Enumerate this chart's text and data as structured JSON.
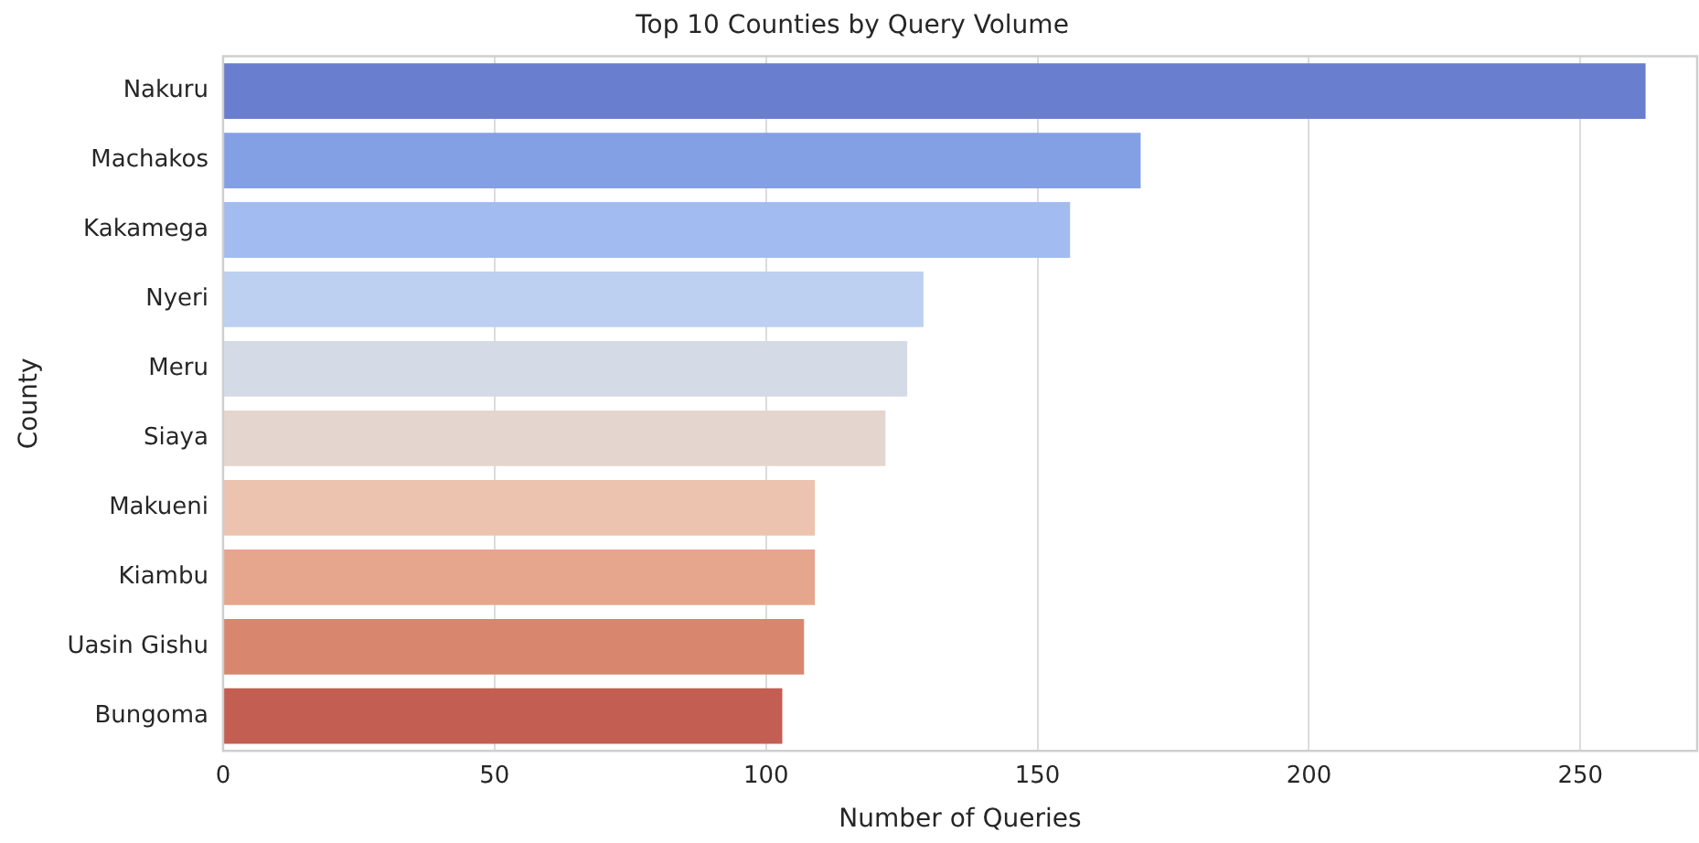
{
  "chart_data": {
    "type": "bar",
    "orientation": "horizontal",
    "title": "Top 10 Counties by Query Volume",
    "xlabel": "Number of Queries",
    "ylabel": "County",
    "categories": [
      "Nakuru",
      "Machakos",
      "Kakamega",
      "Nyeri",
      "Meru",
      "Siaya",
      "Makueni",
      "Kiambu",
      "Uasin Gishu",
      "Bungoma"
    ],
    "values": [
      262,
      169,
      156,
      129,
      126,
      122,
      109,
      109,
      107,
      103
    ],
    "colors": [
      "#6a7ecf",
      "#84a0e4",
      "#a2bbf1",
      "#bdd0f1",
      "#d5dbe6",
      "#e4d6ce",
      "#ecc3ae",
      "#e6a68d",
      "#d9866f",
      "#c35e52"
    ],
    "xlim": [
      0,
      271.5
    ],
    "xticks": [
      0,
      50,
      100,
      150,
      200,
      250
    ],
    "grid": "x"
  }
}
